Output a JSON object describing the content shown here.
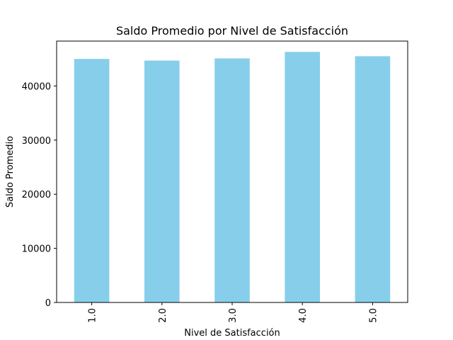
{
  "chart_data": {
    "type": "bar",
    "title": "Saldo Promedio por Nivel de Satisfacción",
    "xlabel": "Nivel de Satisfacción",
    "ylabel": "Saldo Promedio",
    "categories": [
      "1.0",
      "2.0",
      "3.0",
      "4.0",
      "5.0"
    ],
    "values": [
      45000,
      44700,
      45100,
      46300,
      45500
    ],
    "ylim": [
      0,
      48300
    ],
    "yticks": [
      0,
      10000,
      20000,
      30000,
      40000
    ],
    "ytick_labels": [
      "0",
      "10000",
      "20000",
      "30000",
      "40000"
    ],
    "bar_color": "#87ceeb",
    "grid": false,
    "legend": "none",
    "x_tick_rotation": "vertical"
  }
}
